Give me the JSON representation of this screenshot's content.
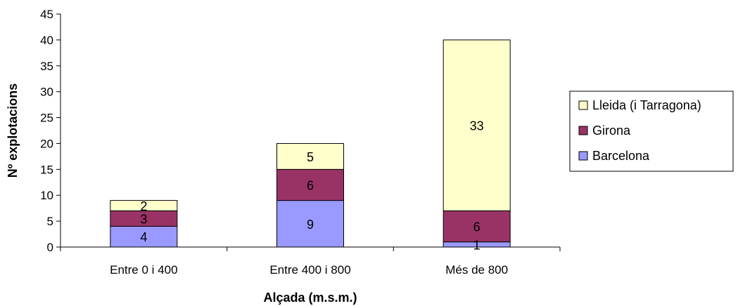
{
  "chart_data": {
    "type": "bar",
    "stacked": true,
    "categories": [
      "Entre 0 i 400",
      "Entre 400 i 800",
      "Més de 800"
    ],
    "series": [
      {
        "name": "Barcelona",
        "values": [
          4,
          9,
          1
        ],
        "color": "#9999ff"
      },
      {
        "name": "Girona",
        "values": [
          3,
          6,
          6
        ],
        "color": "#993366"
      },
      {
        "name": "Lleida (i Tarragona)",
        "values": [
          2,
          5,
          33
        ],
        "color": "#ffffcc"
      }
    ],
    "legend_order": [
      "Lleida (i Tarragona)",
      "Girona",
      "Barcelona"
    ],
    "xlabel": "Alçada (m.s.m.)",
    "ylabel": "Nº explotacions",
    "ylim": [
      0,
      45
    ],
    "yticks": [
      0,
      5,
      10,
      15,
      20,
      25,
      30,
      35,
      40,
      45
    ],
    "grid": false,
    "legend_position": "right",
    "data_labels": true
  }
}
